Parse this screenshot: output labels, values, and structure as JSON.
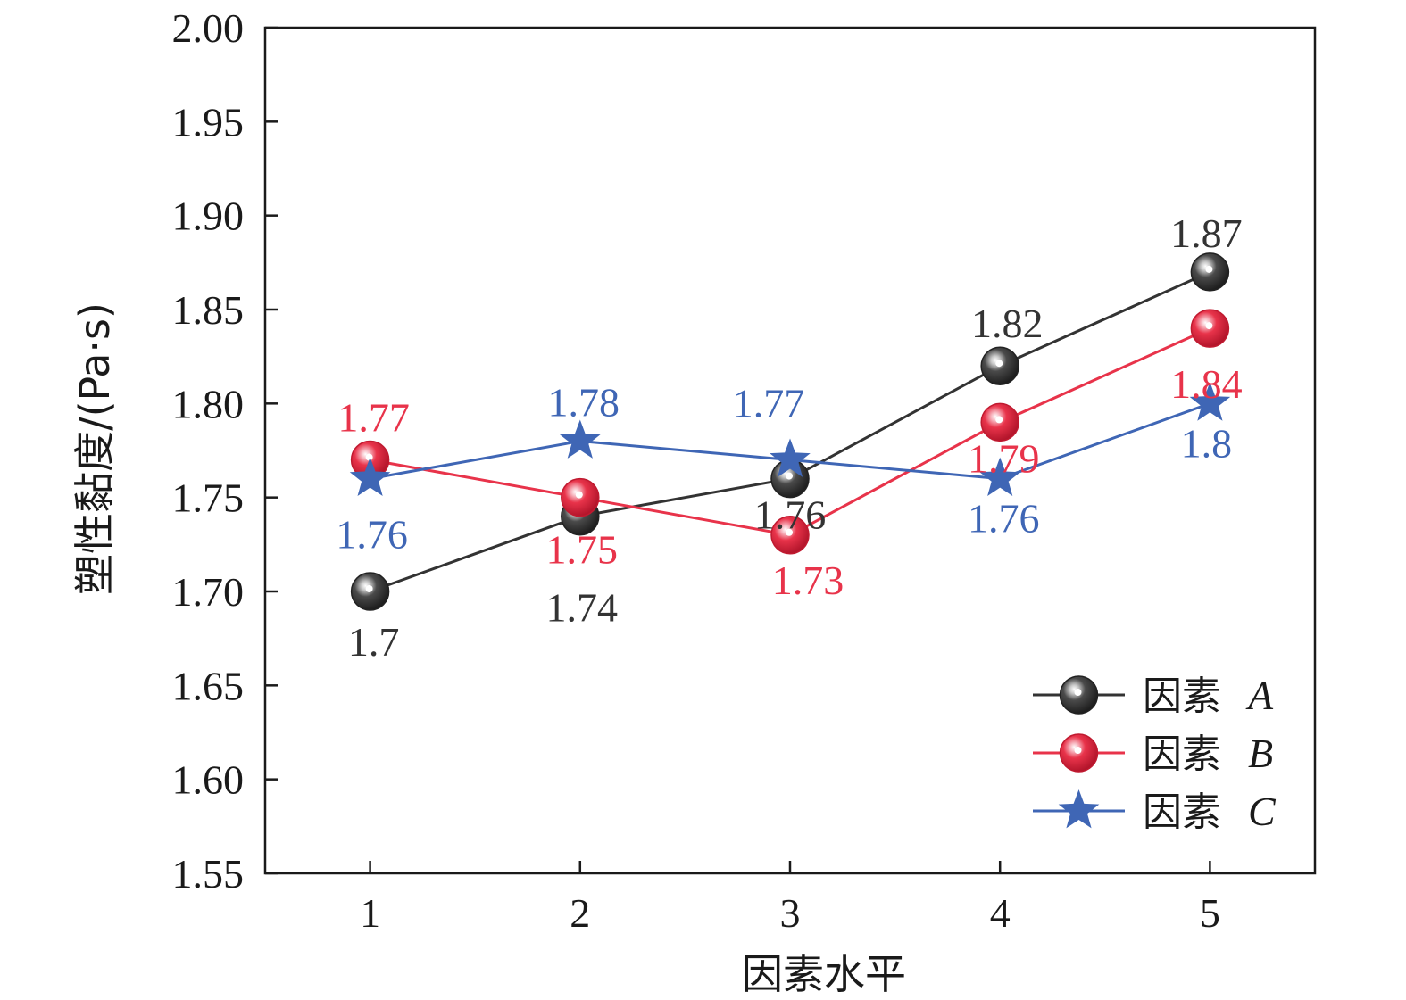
{
  "chart_data": {
    "type": "line",
    "xlabel": "因素水平",
    "ylabel": "塑性黏度/(Pa·s)",
    "categories": [
      "1",
      "2",
      "3",
      "4",
      "5"
    ],
    "x": [
      1,
      2,
      3,
      4,
      5
    ],
    "xlim": [
      0.5,
      5.5
    ],
    "ylim": [
      1.55,
      2.0
    ],
    "yticks": [
      "1.55",
      "1.60",
      "1.65",
      "1.70",
      "1.75",
      "1.80",
      "1.85",
      "1.90",
      "1.95",
      "2.00"
    ],
    "grid": false,
    "legend_position": "bottom-right",
    "series": [
      {
        "name": "因素",
        "name_letter": "A",
        "color": "#333333",
        "marker": "sphere",
        "values": [
          1.7,
          1.74,
          1.76,
          1.82,
          1.87
        ],
        "labels": [
          "1.7",
          "1.74",
          "1.76",
          "1.82",
          "1.87"
        ]
      },
      {
        "name": "因素",
        "name_letter": "B",
        "color": "#e8334a",
        "marker": "sphere",
        "values": [
          1.77,
          1.75,
          1.73,
          1.79,
          1.84
        ],
        "labels": [
          "1.77",
          "1.75",
          "1.73",
          "1.79",
          "1.84"
        ]
      },
      {
        "name": "因素",
        "name_letter": "C",
        "color": "#3f66b5",
        "marker": "star",
        "values": [
          1.76,
          1.78,
          1.77,
          1.76,
          1.8
        ],
        "labels": [
          "1.76",
          "1.78",
          "1.77",
          "1.76",
          "1.8"
        ]
      }
    ]
  }
}
